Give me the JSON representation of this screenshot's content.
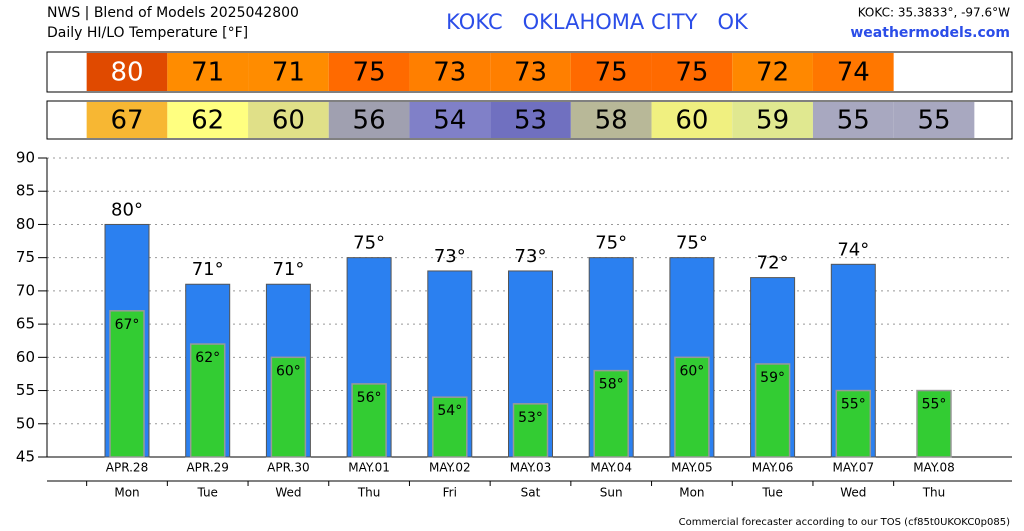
{
  "chart_data": {
    "type": "bar",
    "title": "NWS | Blend of Models 2025042800",
    "subtitle": "Daily HI/LO Temperature [°F]",
    "station_title": "KOKC   OKLAHOMA CITY   OK",
    "coordinates": "KOKC: 35.3833°, -97.6°W",
    "source": "weathermodels.com",
    "footer": "Commercial forecaster according to our TOS (cf85t0UKOKC0p085)",
    "categories": [
      "APR.28",
      "APR.29",
      "APR.30",
      "MAY.01",
      "MAY.02",
      "MAY.03",
      "MAY.04",
      "MAY.05",
      "MAY.06",
      "MAY.07",
      "MAY.08"
    ],
    "weekdays": [
      "Mon",
      "Tue",
      "Wed",
      "Thu",
      "Fri",
      "Sat",
      "Sun",
      "Mon",
      "Tue",
      "Wed",
      "Thu"
    ],
    "highs": {
      "color": "#2b80f0",
      "values": [
        80,
        71,
        71,
        75,
        73,
        73,
        75,
        75,
        72,
        74,
        null
      ],
      "value_labels": [
        "80°",
        "71°",
        "71°",
        "75°",
        "73°",
        "73°",
        "75°",
        "75°",
        "72°",
        "74°",
        null
      ],
      "cell_colors": [
        "#e04a00",
        "#ff8c00",
        "#ff8c00",
        "#ff6a00",
        "#ff7f00",
        "#ff7f00",
        "#ff6a00",
        "#ff6a00",
        "#ff8800",
        "#ff7700",
        null
      ]
    },
    "lows": {
      "color": "#33cc33",
      "values": [
        67,
        62,
        60,
        56,
        54,
        53,
        58,
        60,
        59,
        55,
        55
      ],
      "value_labels": [
        "67°",
        "62°",
        "60°",
        "56°",
        "54°",
        "53°",
        "58°",
        "60°",
        "59°",
        "55°",
        "55°"
      ],
      "cell_colors": [
        "#f7b733",
        "#ffff80",
        "#e0e088",
        "#a0a0b0",
        "#8080c8",
        "#7070c0",
        "#b8b898",
        "#f0f080",
        "#e0e890",
        "#a8a8c0",
        "#a8a8c0"
      ]
    },
    "ylim": [
      45,
      90
    ],
    "yticks": [
      45,
      50,
      55,
      60,
      65,
      70,
      75,
      80,
      85,
      90
    ],
    "grid": true
  }
}
